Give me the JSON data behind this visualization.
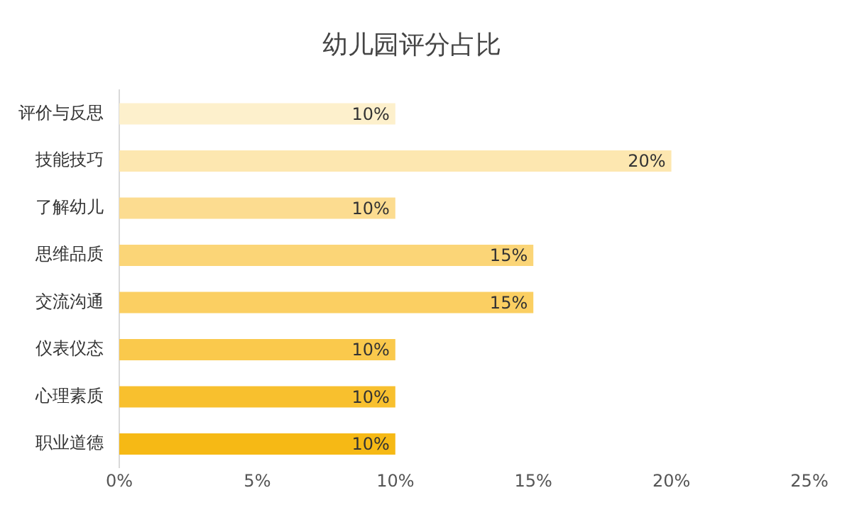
{
  "chart_data": {
    "type": "bar",
    "orientation": "horizontal",
    "title": "幼儿园评分占比",
    "categories": [
      "评价与反思",
      "技能技巧",
      "了解幼儿",
      "思维品质",
      "交流沟通",
      "仪表仪态",
      "心理素质",
      "职业道德"
    ],
    "values": [
      10,
      20,
      10,
      15,
      15,
      10,
      10,
      10
    ],
    "colors": [
      "#fdf0cc",
      "#fde7b0",
      "#fcdc90",
      "#fbd577",
      "#fbcf62",
      "#fac94c",
      "#f8c02e",
      "#f6b915"
    ],
    "value_labels": [
      "10%",
      "20%",
      "10%",
      "15%",
      "15%",
      "10%",
      "10%",
      "10%"
    ],
    "xlim": [
      0,
      25
    ],
    "xticks": [
      {
        "value": 0,
        "label": "0%"
      },
      {
        "value": 5,
        "label": "5%"
      },
      {
        "value": 10,
        "label": "10%"
      },
      {
        "value": 15,
        "label": "15%"
      },
      {
        "value": 20,
        "label": "20%"
      },
      {
        "value": 25,
        "label": "25%"
      }
    ],
    "grid": false,
    "legend": false
  }
}
